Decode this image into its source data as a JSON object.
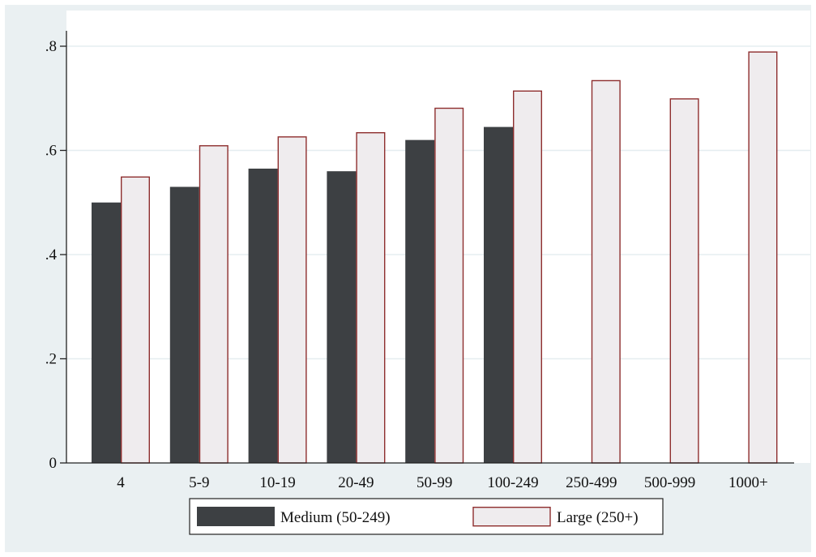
{
  "chart_data": {
    "type": "bar",
    "categories": [
      "4",
      "5-9",
      "10-19",
      "20-49",
      "50-99",
      "100-249",
      "250-499",
      "500-999",
      "1000+"
    ],
    "series": [
      {
        "name": "Medium (50-249)",
        "values": [
          0.5,
          0.53,
          0.565,
          0.56,
          0.62,
          0.645,
          null,
          null,
          null
        ],
        "color": "#3d4043"
      },
      {
        "name": "Large (250+)",
        "values": [
          0.55,
          0.61,
          0.627,
          0.635,
          0.682,
          0.715,
          0.735,
          0.7,
          0.79
        ],
        "color": "#efecee",
        "stroke": "#8e2e2e"
      }
    ],
    "yticks": [
      {
        "value": 0,
        "label": "0"
      },
      {
        "value": 0.2,
        "label": ".2"
      },
      {
        "value": 0.4,
        "label": ".4"
      },
      {
        "value": 0.6,
        "label": ".6"
      },
      {
        "value": 0.8,
        "label": ".8"
      }
    ],
    "ylim": [
      0,
      0.8
    ],
    "grid": true,
    "legend_position": "bottom",
    "background": "#eaf0f2",
    "plot_background": "#ffffff",
    "grid_color": "#e5edf0"
  }
}
